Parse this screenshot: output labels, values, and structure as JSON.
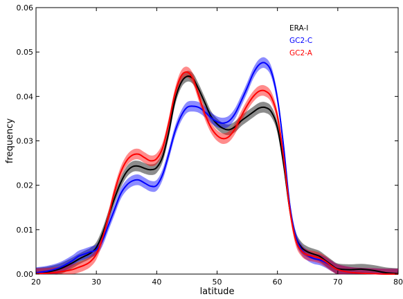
{
  "chart_data": {
    "type": "line",
    "xlabel": "latitude",
    "ylabel": "frequency",
    "xlim": [
      20,
      80
    ],
    "ylim": [
      0.0,
      0.06
    ],
    "xticks": [
      "20",
      "30",
      "40",
      "50",
      "60",
      "70",
      "80"
    ],
    "yticks": [
      "0.00",
      "0.01",
      "0.02",
      "0.03",
      "0.04",
      "0.05",
      "0.06"
    ],
    "grid": false,
    "legend_position": "top-right",
    "x": [
      20,
      22,
      24,
      26,
      27,
      28,
      29,
      30,
      31,
      32,
      33,
      34,
      35,
      36,
      37,
      38,
      39,
      40,
      41,
      42,
      43,
      44,
      45,
      46,
      47,
      48,
      49,
      50,
      51,
      52,
      53,
      54,
      55,
      56,
      57,
      58,
      59,
      60,
      61,
      62,
      63,
      64,
      65,
      66,
      67,
      68,
      69,
      70,
      72,
      74,
      76,
      78,
      80
    ],
    "series": [
      {
        "name": "ERA-I",
        "color": "#000000",
        "band": 0.0012,
        "values": [
          0.0002,
          0.0005,
          0.0012,
          0.0025,
          0.0033,
          0.004,
          0.0047,
          0.006,
          0.009,
          0.013,
          0.017,
          0.0205,
          0.023,
          0.0242,
          0.0243,
          0.0238,
          0.0235,
          0.024,
          0.0265,
          0.032,
          0.039,
          0.043,
          0.0445,
          0.044,
          0.0415,
          0.0385,
          0.0355,
          0.0338,
          0.0328,
          0.0325,
          0.0332,
          0.0345,
          0.0355,
          0.0365,
          0.0374,
          0.0375,
          0.0365,
          0.033,
          0.025,
          0.015,
          0.0085,
          0.006,
          0.005,
          0.0045,
          0.004,
          0.003,
          0.002,
          0.0012,
          0.001,
          0.0011,
          0.0008,
          0.0003,
          0.0001
        ]
      },
      {
        "name": "GC2-C",
        "color": "#0000ff",
        "band": 0.0012,
        "values": [
          0.0003,
          0.0007,
          0.0015,
          0.003,
          0.004,
          0.0045,
          0.005,
          0.0055,
          0.0075,
          0.011,
          0.0145,
          0.018,
          0.02,
          0.021,
          0.0212,
          0.0205,
          0.0198,
          0.02,
          0.0225,
          0.027,
          0.032,
          0.0355,
          0.0375,
          0.0378,
          0.0375,
          0.0365,
          0.0352,
          0.0343,
          0.034,
          0.0345,
          0.0362,
          0.039,
          0.042,
          0.0452,
          0.0472,
          0.0475,
          0.0455,
          0.0395,
          0.029,
          0.016,
          0.0085,
          0.0055,
          0.0042,
          0.0035,
          0.0032,
          0.0026,
          0.0018,
          0.001,
          0.0004,
          0.0002,
          0.0001,
          0.0,
          0.0
        ]
      },
      {
        "name": "GC2-A",
        "color": "#ff0000",
        "band": 0.0012,
        "values": [
          0.0001,
          0.0002,
          0.0005,
          0.001,
          0.0015,
          0.002,
          0.0028,
          0.0045,
          0.008,
          0.013,
          0.0185,
          0.0228,
          0.0255,
          0.0268,
          0.027,
          0.0262,
          0.0255,
          0.026,
          0.0285,
          0.034,
          0.0405,
          0.0445,
          0.0455,
          0.044,
          0.04,
          0.036,
          0.033,
          0.0312,
          0.0305,
          0.031,
          0.0328,
          0.0355,
          0.038,
          0.04,
          0.0412,
          0.0412,
          0.0398,
          0.0355,
          0.0265,
          0.015,
          0.0078,
          0.0052,
          0.0043,
          0.004,
          0.0036,
          0.0028,
          0.0018,
          0.001,
          0.0004,
          0.0002,
          0.0001,
          0.0,
          0.0
        ]
      }
    ]
  }
}
